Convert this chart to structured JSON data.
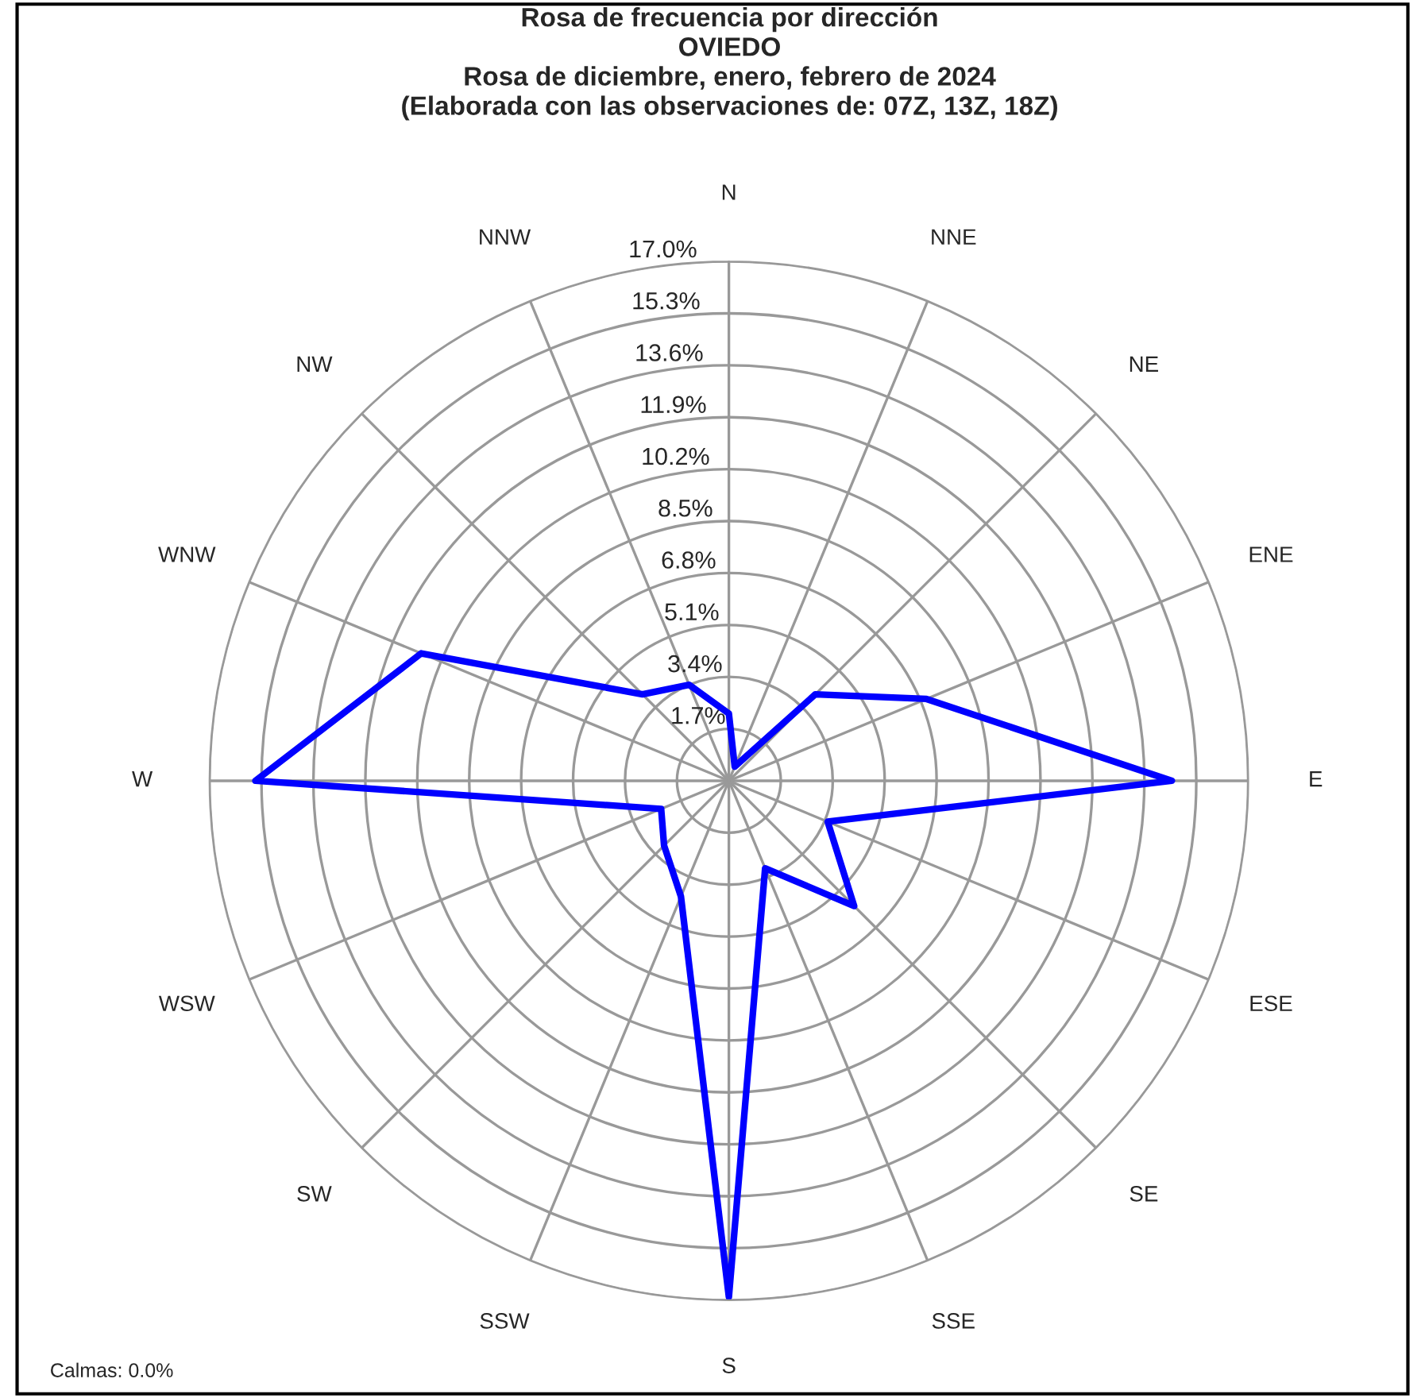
{
  "chart_data": {
    "type": "radar",
    "title": "Rosa de frecuencia por dirección\nOVIEDO\nRosa de diciembre, enero, febrero de 2024\n(Elaborada con las observaciones de: 07Z, 13Z, 18Z)",
    "categories": [
      "N",
      "NNE",
      "NE",
      "ENE",
      "E",
      "ESE",
      "SE",
      "SSE",
      "S",
      "SSW",
      "SW",
      "WSW",
      "W",
      "WNW",
      "NW",
      "NNW"
    ],
    "series": [
      {
        "color": "#0000ff",
        "values": [
          2.2,
          0.5,
          4.0,
          7.0,
          14.5,
          3.5,
          5.8,
          3.1,
          16.9,
          4.1,
          3.0,
          2.4,
          15.5,
          10.9,
          4.0,
          3.4
        ]
      }
    ],
    "ylim": [
      0,
      17
    ],
    "yticks": [
      {
        "value": 1.7,
        "label": "1.7%"
      },
      {
        "value": 3.4,
        "label": "3.4%"
      },
      {
        "value": 5.1,
        "label": "5.1%"
      },
      {
        "value": 6.8,
        "label": "6.8%"
      },
      {
        "value": 8.5,
        "label": "8.5%"
      },
      {
        "value": 10.2,
        "label": "10.2%"
      },
      {
        "value": 11.9,
        "label": "11.9%"
      },
      {
        "value": 13.6,
        "label": "13.6%"
      },
      {
        "value": 15.3,
        "label": "15.3%"
      },
      {
        "value": 17.0,
        "label": "17.0%"
      }
    ],
    "grid": true,
    "marker": "none",
    "line_style": "solid",
    "annotations": [
      "Calmas: 0.0%"
    ]
  }
}
